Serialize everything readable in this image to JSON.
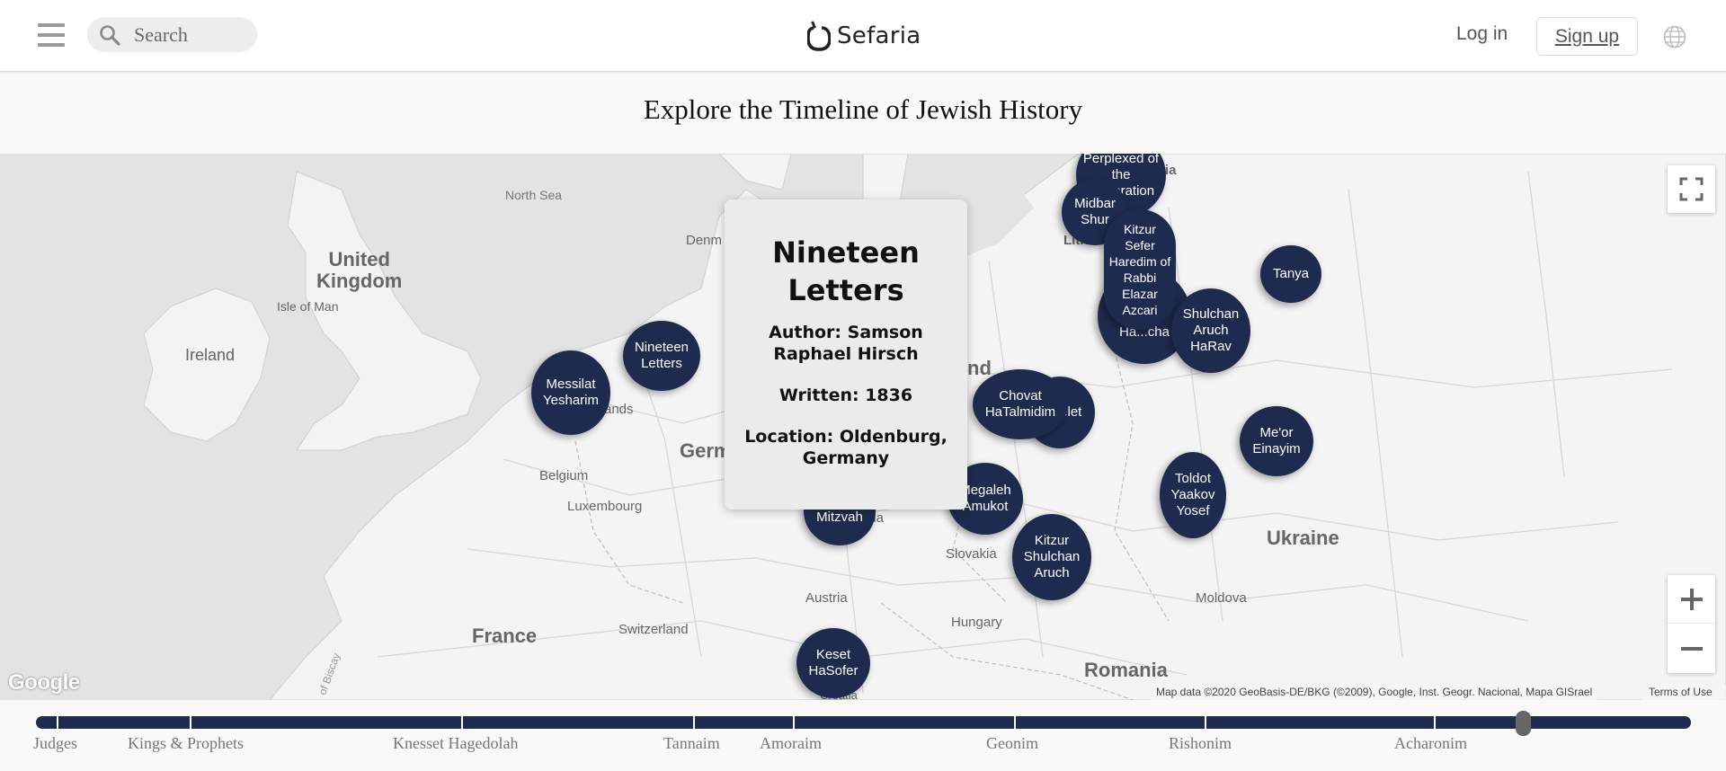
{
  "header": {
    "search_placeholder": "Search",
    "logo_text": "Sefaria",
    "login_label": "Log in",
    "signup_label": "Sign up"
  },
  "page_title": "Explore the Timeline of Jewish History",
  "map": {
    "labels": {
      "north_sea": "North Sea",
      "united_kingdom": "United\nKingdom",
      "isle_of_man": "Isle of Man",
      "ireland": "Ireland",
      "denmark_partial": "Denm",
      "netherlands_partial": "ands",
      "belgium": "Belgium",
      "luxembourg": "Luxembourg",
      "germany_partial": "Germ",
      "poland_partial": "nd",
      "lithuania_partial": "Lith",
      "latvia_partial": "ia",
      "czechia_partial": "hia",
      "slovakia": "Slovakia",
      "austria": "Austria",
      "hungary": "Hungary",
      "france": "France",
      "switzerland": "Switzerland",
      "ukraine": "Ukraine",
      "moldova": "Moldova",
      "romania": "Romania",
      "croatia_partial": "Croatia",
      "bay_of_biscay_partial": "of Biscay"
    },
    "bubbles": [
      {
        "id": "perplexed",
        "text": "Perplexed of the Generation"
      },
      {
        "id": "midbar-shur",
        "text": "Midbar Shur"
      },
      {
        "id": "kitzur-sefer-haredim",
        "text": "Kitzur Sefer Haredim of Rabbi Elazar Azcari"
      },
      {
        "id": "tanya",
        "text": "Tanya"
      },
      {
        "id": "shulchan-aruch-harav",
        "text": "Shulchan Aruch HaRav"
      },
      {
        "id": "ha-shulchan",
        "text": "Ha...cha"
      },
      {
        "id": "nineteen-letters",
        "text": "Nineteen Letters"
      },
      {
        "id": "messilat-yesharim",
        "text": "Messilat Yesharim"
      },
      {
        "id": "chovat-hatalmidim",
        "text": "Chovat HaTalmidim"
      },
      {
        "id": "kelet",
        "text": "...elet"
      },
      {
        "id": "meor-einayim",
        "text": "Me'or Einayim"
      },
      {
        "id": "toldot-yaakov-yosef",
        "text": "Toldot Yaakov Yosef"
      },
      {
        "id": "megaleh-amukot",
        "text": "Megaleh Amukot"
      },
      {
        "id": "mitzvah",
        "text": "Mitzvah"
      },
      {
        "id": "kitzur-shulchan-aruch",
        "text": "Kitzur Shulchan Aruch"
      },
      {
        "id": "keset-hasofer",
        "text": "Keset HaSofer"
      }
    ],
    "popup": {
      "title": "Nineteen Letters",
      "author": "Author: Samson Raphael Hirsch",
      "written": "Written: 1836",
      "location": "Location: Oldenburg, Germany"
    },
    "google_logo": "Google",
    "attribution": "Map data ©2020 GeoBasis-DE/BKG (©2009), Google, Inst. Geogr. Nacional, Mapa GISrael",
    "terms": "Terms of Use"
  },
  "timeline": {
    "eras": [
      "Judges",
      "Kings & Prophets",
      "Knesset Hagedolah",
      "Tannaim",
      "Amoraim",
      "Geonim",
      "Rishonim",
      "Acharonim"
    ],
    "accent": "#1f2b4e"
  }
}
